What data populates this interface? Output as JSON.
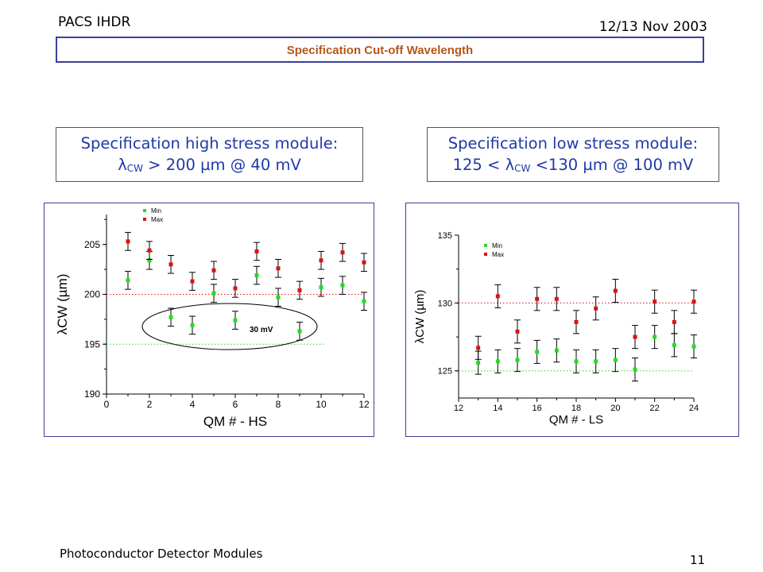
{
  "header": {
    "left": "PACS IHDR",
    "right": "12/13 Nov 2003"
  },
  "banner": {
    "title": "Specification Cut-off Wavelength"
  },
  "spec_high": {
    "line1": "Specification high stress module:",
    "lambda": "λ",
    "sub": "CW",
    "rest": " > 200 µm @ 40 mV"
  },
  "spec_low": {
    "line1": "Specification low stress module:",
    "prefix": "125 < ",
    "lambda": "λ",
    "sub": "CW",
    "rest": " <130 µm @ 100 mV"
  },
  "footer": {
    "left": "Photoconductor Detector Modules",
    "page": "11"
  },
  "colors": {
    "min": "#22dd22",
    "max": "#dd1111",
    "accent": "#1f3aa8",
    "frame": "#3b3f9a",
    "banner_text": "#b5561a"
  },
  "chart_data": [
    {
      "type": "scatter",
      "xlabel": "QM # - HS",
      "ylabel": "λCW (µm)",
      "xlim": [
        0,
        12
      ],
      "ylim": [
        190,
        208
      ],
      "xticks": [
        0,
        2,
        4,
        6,
        8,
        10,
        12
      ],
      "yticks": [
        190,
        195,
        200,
        205
      ],
      "legend_position": "top-left",
      "annotation": "30 mV",
      "reference_lines": [
        200,
        195
      ],
      "series": [
        {
          "name": "Min",
          "points": [
            [
              1,
              201.4
            ],
            [
              2,
              203.4
            ],
            [
              3,
              197.7
            ],
            [
              4,
              196.9
            ],
            [
              5,
              200.1
            ],
            [
              6,
              197.4
            ],
            [
              7,
              201.9
            ],
            [
              8,
              199.7
            ],
            [
              9,
              196.3
            ],
            [
              10,
              200.7
            ],
            [
              11,
              200.9
            ],
            [
              12,
              199.3
            ]
          ]
        },
        {
          "name": "Max",
          "points": [
            [
              1,
              205.3
            ],
            [
              2,
              204.4
            ],
            [
              3,
              203.0
            ],
            [
              4,
              201.3
            ],
            [
              5,
              202.4
            ],
            [
              6,
              200.6
            ],
            [
              7,
              204.3
            ],
            [
              8,
              202.6
            ],
            [
              9,
              200.4
            ],
            [
              10,
              203.4
            ],
            [
              11,
              204.2
            ],
            [
              12,
              203.2
            ]
          ]
        }
      ]
    },
    {
      "type": "scatter",
      "xlabel": "QM # - LS",
      "ylabel": "λCW (µm)",
      "xlim": [
        12,
        24
      ],
      "ylim": [
        123,
        135
      ],
      "xticks": [
        12,
        14,
        16,
        18,
        20,
        22,
        24
      ],
      "yticks": [
        125,
        130,
        135
      ],
      "legend_position": "top-left",
      "reference_lines": [
        130,
        125
      ],
      "series": [
        {
          "name": "Min",
          "points": [
            [
              13,
              125.6
            ],
            [
              14,
              125.7
            ],
            [
              15,
              125.8
            ],
            [
              16,
              126.4
            ],
            [
              17,
              126.5
            ],
            [
              18,
              125.7
            ],
            [
              19,
              125.7
            ],
            [
              20,
              125.8
            ],
            [
              21,
              125.1
            ],
            [
              22,
              127.5
            ],
            [
              23,
              126.9
            ],
            [
              24,
              126.8
            ]
          ]
        },
        {
          "name": "Max",
          "points": [
            [
              13,
              126.7
            ],
            [
              14,
              130.5
            ],
            [
              15,
              127.9
            ],
            [
              16,
              130.3
            ],
            [
              17,
              130.3
            ],
            [
              18,
              128.6
            ],
            [
              19,
              129.6
            ],
            [
              20,
              130.9
            ],
            [
              21,
              127.5
            ],
            [
              22,
              130.1
            ],
            [
              23,
              128.6
            ],
            [
              24,
              130.1
            ]
          ]
        }
      ]
    }
  ]
}
